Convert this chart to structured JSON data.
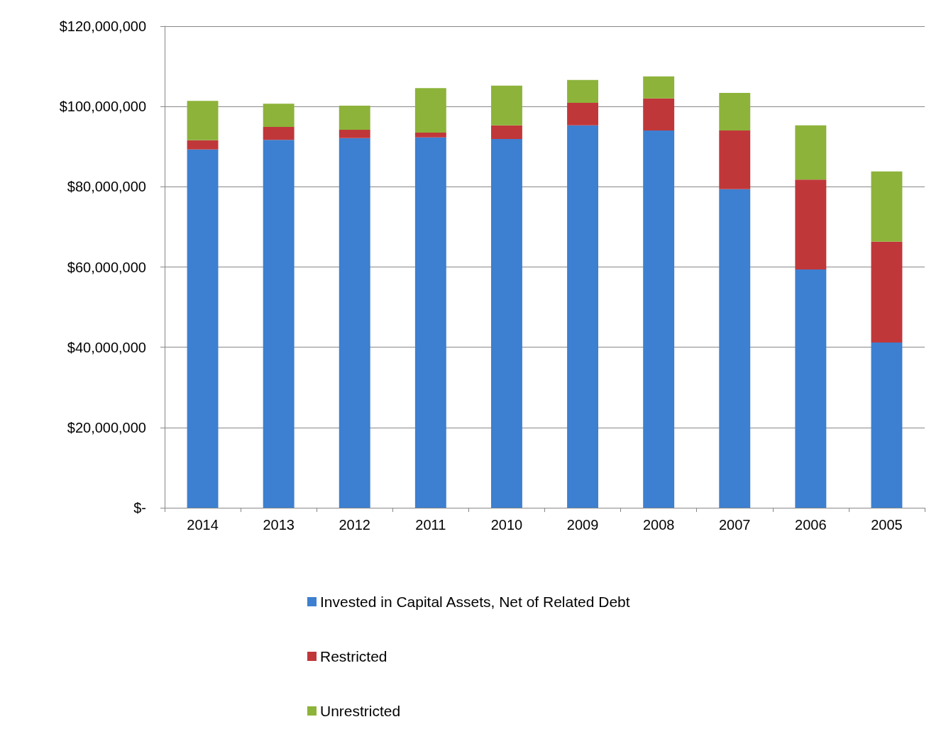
{
  "chart_data": {
    "type": "bar",
    "stacked": true,
    "categories": [
      "2014",
      "2013",
      "2012",
      "2011",
      "2010",
      "2009",
      "2008",
      "2007",
      "2006",
      "2005"
    ],
    "series": [
      {
        "name": "Invested in Capital Assets, Net of Related Debt",
        "color": "#3d7fd0",
        "values": [
          89300000,
          91700000,
          92100000,
          92300000,
          91900000,
          95300000,
          94000000,
          79400000,
          59400000,
          41200000
        ]
      },
      {
        "name": "Restricted",
        "color": "#c0373a",
        "values": [
          2300000,
          3200000,
          2100000,
          1200000,
          3400000,
          5600000,
          8000000,
          14600000,
          22400000,
          25100000
        ]
      },
      {
        "name": "Unrestricted",
        "color": "#8db33a",
        "values": [
          9800000,
          5800000,
          6000000,
          11100000,
          9900000,
          5700000,
          5500000,
          9400000,
          13500000,
          17500000
        ]
      }
    ],
    "ylim": [
      0,
      120000000
    ],
    "yticks": [
      {
        "value": 0,
        "label": "$-"
      },
      {
        "value": 20000000,
        "label": "$20,000,000"
      },
      {
        "value": 40000000,
        "label": "$40,000,000"
      },
      {
        "value": 60000000,
        "label": "$60,000,000"
      },
      {
        "value": 80000000,
        "label": "$80,000,000"
      },
      {
        "value": 100000000,
        "label": "$100,000,000"
      },
      {
        "value": 120000000,
        "label": "$120,000,000"
      }
    ],
    "grid": "y",
    "legend": "bottom"
  }
}
